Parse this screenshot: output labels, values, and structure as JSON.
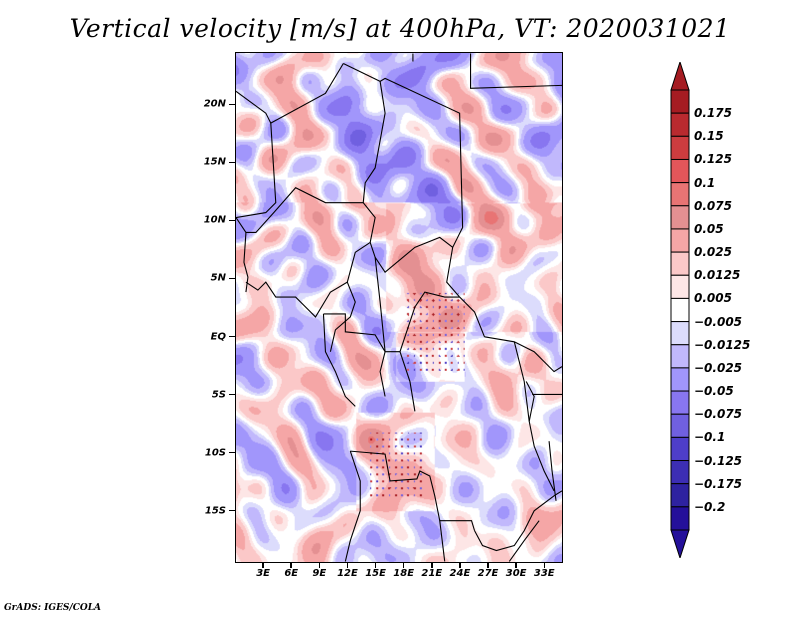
{
  "title": "Vertical velocity [m/s] at 400hPa, VT: 2020031021",
  "credit": "GrADS: IGES/COLA",
  "map": {
    "variable": "Vertical velocity",
    "units": "m/s",
    "level": "400hPa",
    "valid_time": "2020031021",
    "lon_range": [
      0,
      35
    ],
    "lat_range": [
      -19.5,
      24.5
    ],
    "lat_ticks": [
      {
        "value": 20,
        "label": "20N"
      },
      {
        "value": 15,
        "label": "15N"
      },
      {
        "value": 10,
        "label": "10N"
      },
      {
        "value": 5,
        "label": "5N"
      },
      {
        "value": 0,
        "label": "EQ"
      },
      {
        "value": -5,
        "label": "5S"
      },
      {
        "value": -10,
        "label": "10S"
      },
      {
        "value": -15,
        "label": "15S"
      }
    ],
    "lon_ticks": [
      {
        "value": 3,
        "label": "3E"
      },
      {
        "value": 6,
        "label": "6E"
      },
      {
        "value": 9,
        "label": "9E"
      },
      {
        "value": 12,
        "label": "12E"
      },
      {
        "value": 15,
        "label": "15E"
      },
      {
        "value": 18,
        "label": "18E"
      },
      {
        "value": 21,
        "label": "21E"
      },
      {
        "value": 24,
        "label": "24E"
      },
      {
        "value": 27,
        "label": "27E"
      },
      {
        "value": 30,
        "label": "30E"
      },
      {
        "value": 33,
        "label": "33E"
      }
    ]
  },
  "colorbar": {
    "labels": [
      "0.175",
      "0.15",
      "0.125",
      "0.1",
      "0.075",
      "0.05",
      "0.025",
      "0.0125",
      "0.005",
      "−0.005",
      "−0.0125",
      "−0.025",
      "−0.05",
      "−0.075",
      "−0.1",
      "−0.125",
      "−0.175",
      "−0.2"
    ],
    "levels": [
      0.175,
      0.15,
      0.125,
      0.1,
      0.075,
      0.05,
      0.025,
      0.0125,
      0.005,
      -0.005,
      -0.0125,
      -0.025,
      -0.05,
      -0.075,
      -0.1,
      -0.125,
      -0.175,
      -0.2
    ],
    "colors_top_to_bottom": [
      "#a51c22",
      "#b92a2f",
      "#cc3c3f",
      "#e3565a",
      "#e87474",
      "#e49092",
      "#f5a6a6",
      "#fbc8c8",
      "#fde6e6",
      "#ffffff",
      "#dcdcfc",
      "#c1b8fc",
      "#a196fb",
      "#8876f0",
      "#7060e0",
      "#4e3ec9",
      "#3c2eb4",
      "#2e22a0",
      "#24109a"
    ],
    "top_arrow_color": "#a51c22",
    "bottom_arrow_color": "#24109a"
  }
}
